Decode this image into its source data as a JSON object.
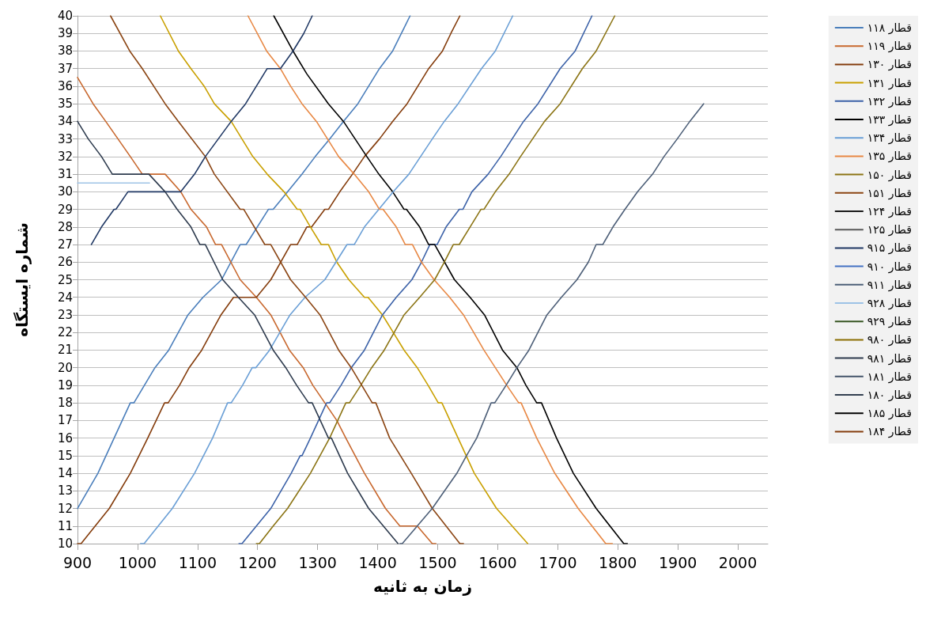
{
  "chart_data": {
    "type": "line",
    "xlabel": "زمان به ثانیه",
    "ylabel": "شماره ایستگاه",
    "xlim": [
      900,
      2050
    ],
    "xticks": [
      900,
      1000,
      1100,
      1200,
      1300,
      1400,
      1500,
      1600,
      1700,
      1800,
      1900,
      2000
    ],
    "ylim": [
      10,
      40
    ],
    "yticks": [
      10,
      11,
      12,
      13,
      14,
      15,
      16,
      17,
      18,
      19,
      20,
      21,
      22,
      23,
      24,
      25,
      26,
      27,
      28,
      29,
      30,
      31,
      32,
      33,
      34,
      35,
      36,
      37,
      38,
      39,
      40
    ],
    "grid": "y",
    "legend": "right",
    "marker": "none",
    "line_style": "solid",
    "series": [
      {
        "name": "قطار ۱۱۸",
        "color": "#4a7ebb",
        "x": [
          900,
          934,
          988,
          994,
          1029,
          1052,
          1084,
          1109,
          1140,
          1171,
          1181,
          1218,
          1226,
          1274,
          1296,
          1320,
          1343,
          1367,
          1403,
          1425,
          1454
        ],
        "values": [
          12,
          14,
          18,
          18,
          20,
          21,
          23,
          24,
          25,
          27,
          27,
          29,
          29,
          31,
          32,
          33,
          34,
          35,
          37,
          38,
          40
        ]
      },
      {
        "name": "قطار ۱۱۹",
        "color": "#c8682e",
        "x": [
          900,
          926,
          947,
          988,
          1008,
          1046,
          1072,
          1089,
          1115,
          1130,
          1140,
          1171,
          1198,
          1222,
          1253,
          1276,
          1292,
          1312,
          1332,
          1347,
          1378,
          1413,
          1437,
          1466,
          1491,
          1497
        ],
        "values": [
          36.5,
          35,
          34,
          32,
          31,
          31,
          30,
          29,
          28,
          27,
          27,
          25,
          24,
          23,
          21,
          20,
          19,
          18,
          17,
          16,
          14,
          12,
          11,
          11,
          10,
          10
        ]
      },
      {
        "name": "قطار ۱۳۰",
        "color": "#843c0c",
        "x": [
          900,
          906,
          953,
          988,
          1017,
          1045,
          1051,
          1070,
          1086,
          1107,
          1139,
          1160,
          1198,
          1222,
          1255,
          1266,
          1282,
          1290,
          1312,
          1318,
          1337,
          1358,
          1378,
          1403,
          1425,
          1449,
          1485,
          1508,
          1522,
          1537
        ],
        "values": [
          10,
          10,
          12,
          14,
          16,
          18,
          18,
          19,
          20,
          21,
          23,
          24,
          24,
          25,
          27,
          27,
          28,
          28,
          29,
          29,
          30,
          31,
          32,
          33,
          34,
          35,
          37,
          38,
          39,
          40
        ]
      },
      {
        "name": "قطار ۱۳۱",
        "color": "#c9a000",
        "x": [
          1038,
          1068,
          1089,
          1111,
          1128,
          1156,
          1192,
          1216,
          1244,
          1266,
          1271,
          1288,
          1306,
          1318,
          1332,
          1352,
          1378,
          1384,
          1408,
          1426,
          1444,
          1466,
          1484,
          1501,
          1507,
          1534,
          1561,
          1598,
          1650
        ],
        "values": [
          40,
          38,
          37,
          36,
          35,
          34,
          32,
          31,
          30,
          29,
          29,
          28,
          27,
          27,
          26,
          25,
          24,
          24,
          23,
          22,
          21,
          20,
          19,
          18,
          18,
          16,
          14,
          12,
          10
        ]
      },
      {
        "name": "قطار ۱۳۲",
        "color": "#3c62a8",
        "x": [
          1169,
          1174,
          1198,
          1222,
          1256,
          1271,
          1274,
          1288,
          1315,
          1320,
          1339,
          1356,
          1378,
          1408,
          1431,
          1457,
          1473,
          1487,
          1499,
          1514,
          1536,
          1542,
          1557,
          1584,
          1605,
          1643,
          1667,
          1704,
          1729,
          1757
        ],
        "values": [
          10,
          10,
          11,
          12,
          14,
          15,
          15,
          16,
          18,
          18,
          19,
          20,
          21,
          23,
          24,
          25,
          26,
          27,
          27,
          28,
          29,
          29,
          30,
          31,
          32,
          34,
          35,
          37,
          38,
          40
        ]
      },
      {
        "name": "قطار ۱۳۳",
        "color": "#000000",
        "x": [
          1227,
          1259,
          1282,
          1318,
          1343,
          1382,
          1402,
          1425,
          1444,
          1448,
          1470,
          1485,
          1495,
          1528,
          1554,
          1578,
          1608,
          1632,
          1647,
          1665,
          1673,
          1698,
          1726,
          1764,
          1810,
          1816
        ],
        "values": [
          40,
          38,
          36.7,
          35,
          34,
          32,
          31,
          30,
          29,
          29,
          28,
          27,
          27,
          25,
          24,
          23,
          21,
          20,
          19,
          18,
          18,
          16,
          14,
          12,
          10,
          10
        ]
      },
      {
        "name": "قطار ۱۳۴",
        "color": "#6a9fd6",
        "x": [
          1005,
          1011,
          1058,
          1095,
          1125,
          1150,
          1156,
          1175,
          1191,
          1197,
          1220,
          1254,
          1279,
          1312,
          1349,
          1361,
          1378,
          1402,
          1426,
          1452,
          1491,
          1511,
          1534,
          1573,
          1596,
          1625
        ],
        "values": [
          10,
          10,
          12,
          14,
          16,
          18,
          18,
          19,
          20,
          20,
          21,
          23,
          24,
          25,
          27,
          27,
          28,
          29,
          30,
          31,
          33,
          34,
          35,
          37,
          38,
          40
        ]
      },
      {
        "name": "قطار ۱۳۵",
        "color": "#e88844",
        "x": [
          1184,
          1215,
          1238,
          1255,
          1274,
          1298,
          1335,
          1361,
          1385,
          1403,
          1409,
          1431,
          1446,
          1458,
          1473,
          1494,
          1520,
          1543,
          1577,
          1596,
          1615,
          1635,
          1639,
          1665,
          1695,
          1734,
          1780,
          1791
        ],
        "values": [
          40,
          38,
          37,
          36,
          35,
          34,
          32,
          31,
          30,
          29,
          29,
          28,
          27,
          27,
          26,
          25,
          24,
          23,
          21,
          20,
          19,
          18,
          18,
          16,
          14,
          12,
          10,
          10
        ]
      },
      {
        "name": "قطار ۱۵۰",
        "color": "#8b7414",
        "x": [
          1198,
          1203,
          1226,
          1250,
          1288,
          1320,
          1347,
          1353,
          1372,
          1390,
          1411,
          1444,
          1470,
          1495,
          1511,
          1526,
          1536,
          1554,
          1572,
          1577,
          1596,
          1619,
          1638,
          1678,
          1704,
          1741,
          1764,
          1795
        ],
        "values": [
          10,
          10,
          11,
          12,
          14,
          16,
          18,
          18,
          19,
          20,
          21,
          23,
          24,
          25,
          26,
          27,
          27,
          28,
          29,
          29,
          30,
          31,
          32,
          34,
          35,
          37,
          38,
          40
        ]
      },
      {
        "name": "قطار ۱۵۱",
        "color": "#8b4513",
        "x": [
          955,
          987,
          1008,
          1046,
          1068,
          1113,
          1128,
          1171,
          1177,
          1212,
          1222,
          1255,
          1280,
          1304,
          1335,
          1356,
          1391,
          1397,
          1420,
          1456,
          1491,
          1537,
          1543
        ],
        "values": [
          40,
          38,
          37,
          35,
          34,
          32,
          31,
          29,
          29,
          27,
          27,
          25,
          24,
          23,
          21,
          20,
          18,
          18,
          16,
          14,
          12,
          10,
          10
        ]
      },
      {
        "name": "قطار ۱۲۴",
        "color": "#1a1a1a"
      },
      {
        "name": "قطار ۱۲۵",
        "color": "#595959"
      },
      {
        "name": "قطار ۹۱۵",
        "color": "#203864",
        "x": [
          923,
          940,
          961,
          964,
          984,
          1072,
          1095,
          1113,
          1156,
          1180,
          1216,
          1238,
          1259,
          1277,
          1291
        ],
        "values": [
          27,
          28,
          29,
          29,
          30,
          30,
          31,
          32,
          34,
          35,
          37,
          37,
          38,
          39,
          40
        ]
      },
      {
        "name": "قطار ۹۱۰",
        "color": "#4472c4"
      },
      {
        "name": "قطار ۹۱۱",
        "color": "#4d5f78",
        "x": [
          1437,
          1441,
          1466,
          1491,
          1532,
          1548,
          1565,
          1589,
          1595,
          1614,
          1632,
          1652,
          1682,
          1706,
          1732,
          1751,
          1764,
          1775,
          1792,
          1812,
          1833,
          1858,
          1877,
          1899,
          1920,
          1943
        ],
        "values": [
          10,
          10,
          11,
          12,
          14,
          15,
          16,
          18,
          18,
          19,
          20,
          21,
          23,
          24,
          25,
          26,
          27,
          27,
          28,
          29,
          30,
          31,
          32,
          33,
          34,
          35
        ]
      },
      {
        "name": "قطار ۹۲۸",
        "color": "#9dc3e6",
        "x": [
          900,
          1020
        ],
        "values": [
          30.5,
          30.5
        ]
      },
      {
        "name": "قطار ۹۲۹",
        "color": "#375623"
      },
      {
        "name": "قطار ۹۸۰",
        "color": "#8a6d00"
      },
      {
        "name": "قطار ۹۸۱",
        "color": "#2e3b4e",
        "x": [
          900,
          918,
          940,
          958,
          1019,
          1046,
          1066,
          1089,
          1104,
          1113,
          1142,
          1168,
          1195,
          1226,
          1247,
          1265,
          1285,
          1291,
          1318,
          1323,
          1350,
          1385,
          1434
        ],
        "values": [
          34,
          33,
          32,
          31,
          31,
          30,
          29,
          28,
          27,
          27,
          25,
          24,
          23,
          21,
          20,
          19,
          18,
          18,
          16,
          16,
          14,
          12,
          10
        ]
      },
      {
        "name": "قطار ۱۸۱",
        "color": "#44546a"
      },
      {
        "name": "قطار ۱۸۰",
        "color": "#333f50"
      },
      {
        "name": "قطار ۱۸۵",
        "color": "#000000"
      },
      {
        "name": "قطار ۱۸۴",
        "color": "#843c0c"
      }
    ]
  }
}
